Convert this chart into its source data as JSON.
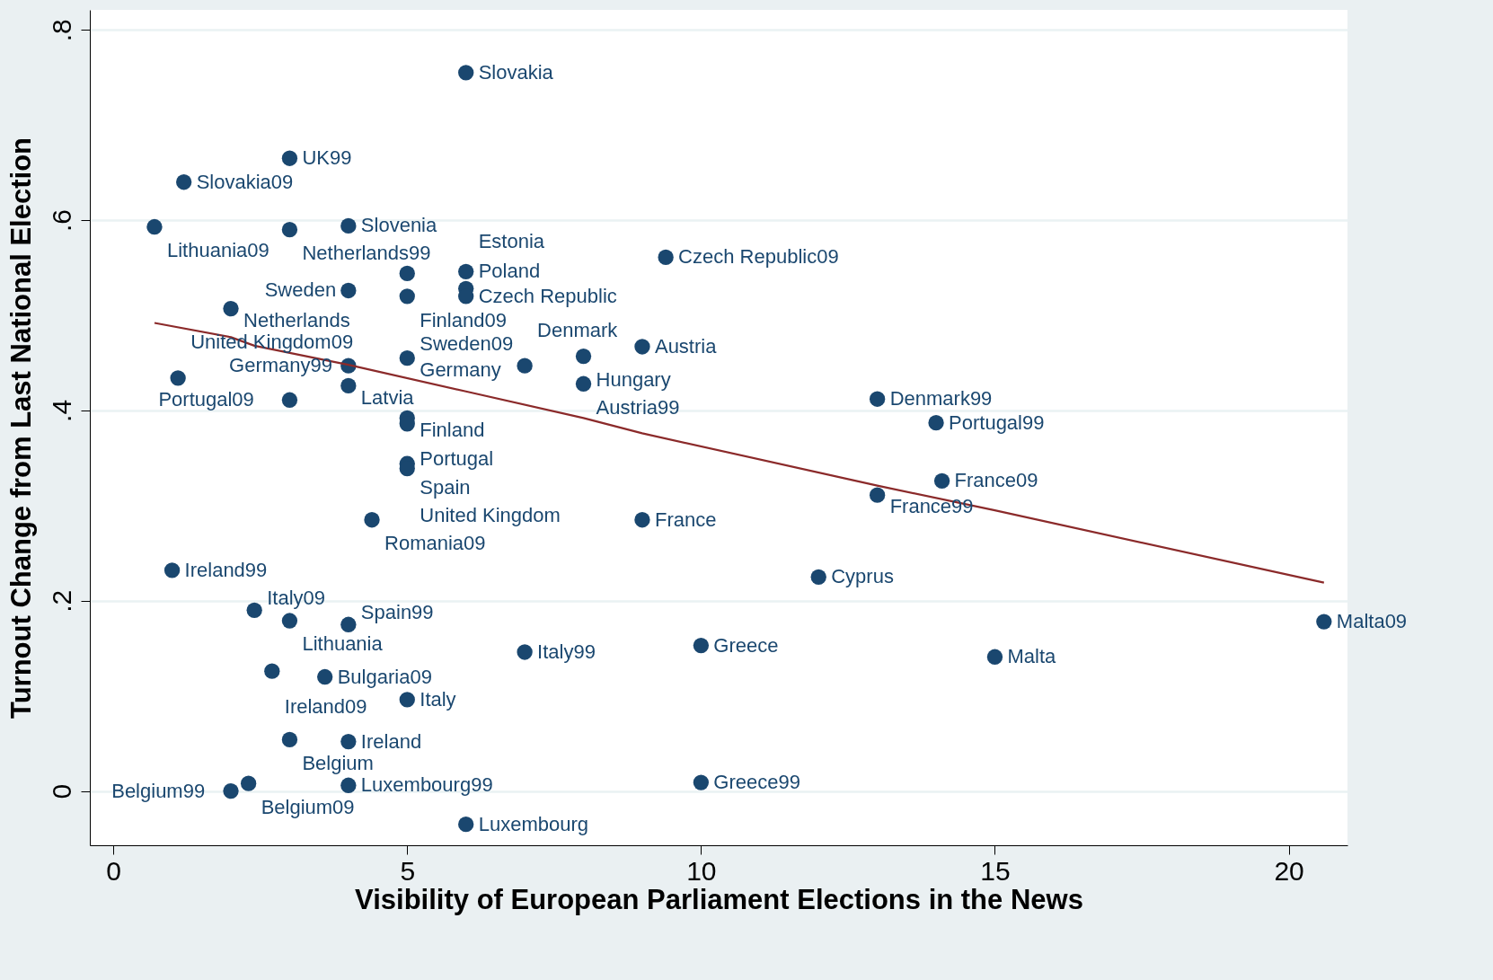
{
  "chart_data": {
    "type": "scatter",
    "xlabel": "Visibility of European Parliament Elections in the News",
    "ylabel": "Turnout Change from Last National Election",
    "xlim": [
      -0.4,
      21.0
    ],
    "ylim": [
      -0.057,
      0.821
    ],
    "xticks": [
      0,
      5,
      10,
      15,
      20
    ],
    "yticks": [
      0,
      {
        "value": 0.2,
        "label": ".2"
      },
      {
        "value": 0.4,
        "label": ".4"
      },
      {
        "value": 0.6,
        "label": ".6"
      },
      {
        "value": 0.8,
        "label": ".8"
      }
    ],
    "grid": "y",
    "marker": "circle",
    "series": [
      {
        "type": "scatter",
        "color": "#1a476f",
        "x": [
          6.0,
          3.0,
          1.2,
          0.7,
          4.0,
          3.0,
          9.4,
          5.0,
          6.0,
          4.0,
          6.0,
          5.0,
          6.0,
          2.0,
          9.0,
          8.0,
          5.0,
          4.0,
          7.0,
          1.1,
          4.0,
          8.0,
          3.0,
          13.0,
          5.0,
          5.0,
          14.0,
          5.0,
          5.0,
          14.1,
          13.0,
          4.4,
          9.0,
          1.0,
          12.0,
          2.4,
          3.0,
          4.0,
          20.6,
          10.0,
          7.0,
          15.0,
          2.7,
          3.6,
          5.0,
          3.0,
          4.0,
          2.3,
          4.0,
          10.0,
          2.0,
          6.0
        ],
        "values": [
          0.755,
          0.665,
          0.64,
          0.593,
          0.594,
          0.59,
          0.561,
          0.544,
          0.546,
          0.526,
          0.528,
          0.52,
          0.52,
          0.507,
          0.467,
          0.457,
          0.455,
          0.447,
          0.447,
          0.434,
          0.426,
          0.428,
          0.411,
          0.412,
          0.392,
          0.386,
          0.387,
          0.344,
          0.339,
          0.326,
          0.311,
          0.285,
          0.285,
          0.232,
          0.225,
          0.19,
          0.179,
          0.175,
          0.178,
          0.153,
          0.146,
          0.141,
          0.126,
          0.12,
          0.096,
          0.054,
          0.052,
          0.008,
          0.006,
          0.009,
          0.0,
          -0.035
        ]
      },
      {
        "type": "line",
        "color": "#8b2a2a",
        "marker": "none",
        "x": [
          0.7,
          2.0,
          2.4,
          4.0,
          6.0,
          8.0,
          9.0,
          13.0,
          15.0,
          20.6
        ],
        "values": [
          0.492,
          0.477,
          0.468,
          0.448,
          0.42,
          0.392,
          0.376,
          0.321,
          0.295,
          0.219
        ]
      }
    ],
    "annotations": [
      {
        "text": "Slovakia",
        "x": 6.0,
        "y": 0.755
      },
      {
        "text": "UK99",
        "x": 3.0,
        "y": 0.665
      },
      {
        "text": "Slovakia09",
        "x": 1.2,
        "y": 0.64
      },
      {
        "text": "Lithuania09",
        "x": 0.7,
        "y": 0.593
      },
      {
        "text": "Slovenia",
        "x": 4.0,
        "y": 0.594
      },
      {
        "text": "Netherlands99",
        "x": 3.0,
        "y": 0.59
      },
      {
        "text": "Czech Republic09",
        "x": 9.4,
        "y": 0.561
      },
      {
        "text": "Finland09",
        "x": 5.0,
        "y": 0.544
      },
      {
        "text": "Poland",
        "x": 6.0,
        "y": 0.546
      },
      {
        "text": "Sweden",
        "x": 4.0,
        "y": 0.526
      },
      {
        "text": "Estonia",
        "x": 6.0,
        "y": 0.528
      },
      {
        "text": "Sweden09",
        "x": 5.0,
        "y": 0.52
      },
      {
        "text": "Czech Republic",
        "x": 6.0,
        "y": 0.52
      },
      {
        "text": "Netherlands",
        "x": 2.0,
        "y": 0.507
      },
      {
        "text": "Austria",
        "x": 9.0,
        "y": 0.467
      },
      {
        "text": "Hungary",
        "x": 8.0,
        "y": 0.457
      },
      {
        "text": "Germany",
        "x": 5.0,
        "y": 0.455
      },
      {
        "text": "Germany99",
        "x": 4.0,
        "y": 0.447
      },
      {
        "text": "Denmark",
        "x": 7.0,
        "y": 0.447
      },
      {
        "text": "United Kingdom09",
        "x": 1.1,
        "y": 0.434
      },
      {
        "text": "Latvia",
        "x": 4.0,
        "y": 0.426
      },
      {
        "text": "Austria99",
        "x": 8.0,
        "y": 0.428
      },
      {
        "text": "Portugal09",
        "x": 3.0,
        "y": 0.411
      },
      {
        "text": "Denmark99",
        "x": 13.0,
        "y": 0.412
      },
      {
        "text": "Finland",
        "x": 5.0,
        "y": 0.392
      },
      {
        "text": "Portugal",
        "x": 5.0,
        "y": 0.386
      },
      {
        "text": "Portugal99",
        "x": 14.0,
        "y": 0.387
      },
      {
        "text": "Spain",
        "x": 5.0,
        "y": 0.344
      },
      {
        "text": "United Kingdom",
        "x": 5.0,
        "y": 0.339
      },
      {
        "text": "France09",
        "x": 14.1,
        "y": 0.326
      },
      {
        "text": "France99",
        "x": 13.0,
        "y": 0.311
      },
      {
        "text": "Romania09",
        "x": 4.4,
        "y": 0.285
      },
      {
        "text": "France",
        "x": 9.0,
        "y": 0.285
      },
      {
        "text": "Ireland99",
        "x": 1.0,
        "y": 0.232
      },
      {
        "text": "Cyprus",
        "x": 12.0,
        "y": 0.225
      },
      {
        "text": "Italy09",
        "x": 2.4,
        "y": 0.19
      },
      {
        "text": "Lithuania",
        "x": 3.0,
        "y": 0.179
      },
      {
        "text": "Spain99",
        "x": 4.0,
        "y": 0.175
      },
      {
        "text": "Malta09",
        "x": 20.6,
        "y": 0.178
      },
      {
        "text": "Greece",
        "x": 10.0,
        "y": 0.153
      },
      {
        "text": "Italy99",
        "x": 7.0,
        "y": 0.146
      },
      {
        "text": "Malta",
        "x": 15.0,
        "y": 0.141
      },
      {
        "text": "Ireland09",
        "x": 2.7,
        "y": 0.126
      },
      {
        "text": "Bulgaria09",
        "x": 3.6,
        "y": 0.12
      },
      {
        "text": "Italy",
        "x": 5.0,
        "y": 0.096
      },
      {
        "text": "Belgium",
        "x": 3.0,
        "y": 0.054
      },
      {
        "text": "Ireland",
        "x": 4.0,
        "y": 0.052
      },
      {
        "text": "Belgium09",
        "x": 2.3,
        "y": 0.008
      },
      {
        "text": "Luxembourg99",
        "x": 4.0,
        "y": 0.006
      },
      {
        "text": "Greece99",
        "x": 10.0,
        "y": 0.009
      },
      {
        "text": "Belgium99",
        "x": 2.0,
        "y": 0.0
      },
      {
        "text": "Luxembourg",
        "x": 6.0,
        "y": -0.035
      }
    ]
  }
}
